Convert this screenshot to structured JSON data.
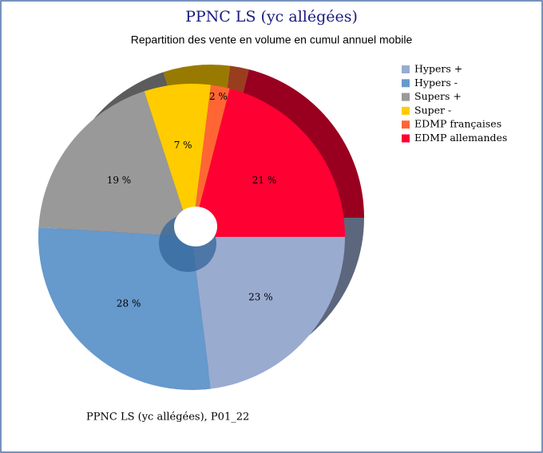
{
  "chart_data": {
    "type": "pie",
    "title": "PPNC LS (yc allégées)",
    "subtitle": "Repartition des vente en volume en cumul annuel mobile",
    "footer": "PPNC LS (yc allégées), P01_22",
    "categories": [
      "Hypers +",
      "Hypers -",
      "Supers +",
      "Super -",
      "EDMP françaises",
      "EDMP allemandes"
    ],
    "values": [
      23,
      28,
      19,
      7,
      2,
      21
    ],
    "value_labels": [
      "23 %",
      "28 %",
      "19 %",
      "7 %",
      "2 %",
      "21 %"
    ],
    "colors": [
      "#9aabd0",
      "#6699cc",
      "#999999",
      "#ffcc00",
      "#ff6633",
      "#ff0033"
    ],
    "legend": "right"
  }
}
